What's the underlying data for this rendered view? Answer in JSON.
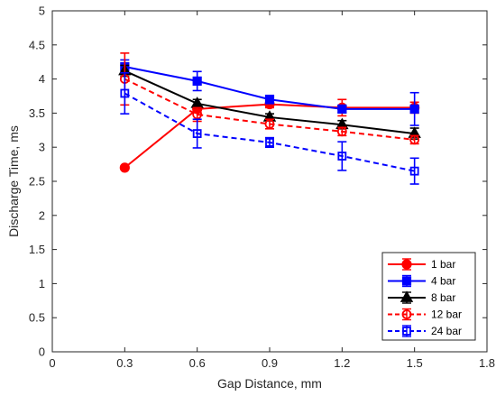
{
  "chart_data": {
    "type": "line",
    "title": "",
    "xlabel": "Gap Distance, mm",
    "ylabel": "Discharge Time, ms",
    "xlim": [
      0,
      1.8
    ],
    "ylim": [
      0,
      5
    ],
    "x_ticks": [
      0,
      0.3,
      0.6,
      0.9,
      1.2,
      1.5,
      1.8
    ],
    "x_tick_labels": [
      "0",
      "0.3",
      "0.6",
      "0.9",
      "1.2",
      "1.5",
      "1.8"
    ],
    "y_ticks": [
      0,
      0.5,
      1,
      1.5,
      2,
      2.5,
      3,
      3.5,
      4,
      4.5,
      5
    ],
    "y_tick_labels": [
      "0",
      "0.5",
      "1",
      "1.5",
      "2",
      "2.5",
      "3",
      "3.5",
      "4",
      "4.5",
      "5"
    ],
    "grid": false,
    "legend_position": "bottom-right",
    "series": [
      {
        "name": "1 bar",
        "color": "#ff0000",
        "line_style": "solid",
        "marker": "filled-circle",
        "x": [
          0.3,
          0.6,
          0.9,
          1.2,
          1.5
        ],
        "y": [
          2.7,
          3.56,
          3.63,
          3.58,
          3.58
        ],
        "error": [
          0,
          0.05,
          0.05,
          0.12,
          0.08
        ],
        "error_plus": [
          0,
          0.05,
          0.05,
          0.12,
          0.08
        ],
        "error_minus": [
          0,
          0.05,
          0.05,
          0.12,
          0.08
        ]
      },
      {
        "name": "4 bar",
        "color": "#0000ff",
        "line_style": "solid",
        "marker": "filled-square",
        "x": [
          0.3,
          0.6,
          0.9,
          1.2,
          1.5
        ],
        "y": [
          4.18,
          3.97,
          3.7,
          3.56,
          3.56
        ],
        "error": [
          0.1,
          0.14,
          0.06,
          0.05,
          0.24
        ],
        "error_plus": [
          0.1,
          0.14,
          0.06,
          0.05,
          0.24
        ],
        "error_minus": [
          0.1,
          0.14,
          0.06,
          0.05,
          0.24
        ]
      },
      {
        "name": "8 bar",
        "color": "#000000",
        "line_style": "solid",
        "marker": "filled-triangle",
        "x": [
          0.3,
          0.6,
          0.9,
          1.2,
          1.5
        ],
        "y": [
          4.12,
          3.64,
          3.44,
          3.33,
          3.2
        ],
        "error": [
          0.08,
          0.06,
          0.05,
          0.06,
          0.08
        ],
        "error_plus": [
          0.08,
          0.06,
          0.05,
          0.06,
          0.08
        ],
        "error_minus": [
          0.08,
          0.06,
          0.05,
          0.06,
          0.08
        ]
      },
      {
        "name": "12 bar",
        "color": "#ff0000",
        "line_style": "dashed",
        "marker": "open-circle",
        "x": [
          0.3,
          0.6,
          0.9,
          1.2,
          1.5
        ],
        "y": [
          4.0,
          3.48,
          3.34,
          3.23,
          3.11
        ],
        "error": [
          0.38,
          0.1,
          0.07,
          0.06,
          0.06
        ],
        "error_plus": [
          0.38,
          0.1,
          0.07,
          0.06,
          0.06
        ],
        "error_minus": [
          0.38,
          0.1,
          0.07,
          0.06,
          0.06
        ]
      },
      {
        "name": "24 bar",
        "color": "#0000ff",
        "line_style": "dashed",
        "marker": "open-square",
        "x": [
          0.3,
          0.6,
          0.9,
          1.2,
          1.5
        ],
        "y": [
          3.79,
          3.2,
          3.07,
          2.87,
          2.65
        ],
        "error": [
          0.3,
          0.21,
          0.07,
          0.21,
          0.19
        ],
        "error_plus": [
          0.3,
          0.21,
          0.07,
          0.21,
          0.19
        ],
        "error_minus": [
          0.3,
          0.21,
          0.07,
          0.21,
          0.19
        ]
      }
    ]
  }
}
